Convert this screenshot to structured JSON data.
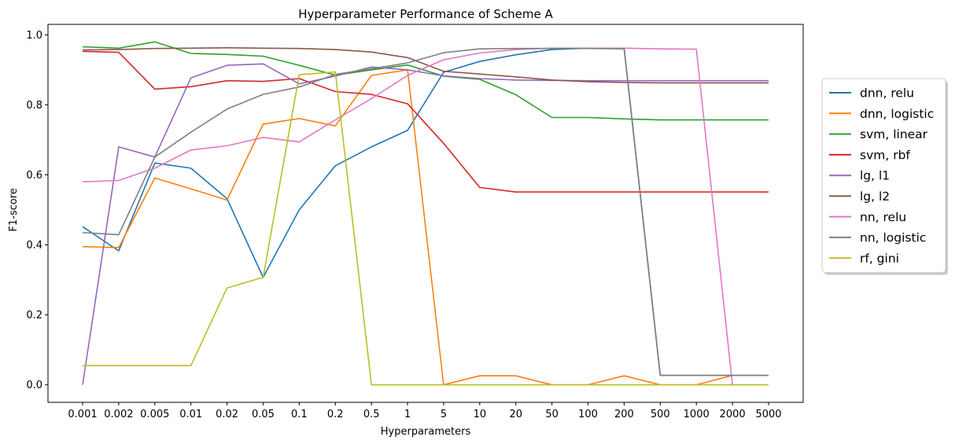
{
  "chart_data": {
    "type": "line",
    "title": "Hyperparameter Performance of Scheme A",
    "xlabel": "Hyperparameters",
    "ylabel": "F1-score",
    "ylim": [
      -0.05,
      1.03
    ],
    "yticks": [
      0.0,
      0.2,
      0.4,
      0.6,
      0.8,
      1.0
    ],
    "ytick_labels": [
      "0.0",
      "0.2",
      "0.4",
      "0.6",
      "0.8",
      "1.0"
    ],
    "categories": [
      "0.001",
      "0.002",
      "0.005",
      "0.01",
      "0.02",
      "0.05",
      "0.1",
      "0.2",
      "0.5",
      "1",
      "5",
      "10",
      "20",
      "50",
      "100",
      "200",
      "500",
      "1000",
      "2000",
      "5000"
    ],
    "grid": false,
    "legend_position": "outside-right",
    "series": [
      {
        "name": "dnn, relu",
        "color": "#1f77b4",
        "values": [
          0.452,
          0.383,
          0.634,
          0.619,
          0.532,
          0.307,
          0.5,
          0.626,
          0.68,
          0.727,
          0.893,
          0.924,
          0.943,
          0.958,
          0.962,
          0.962,
          0.027,
          0.027,
          0.027,
          0.027
        ]
      },
      {
        "name": "dnn, logistic",
        "color": "#ff7f0e",
        "values": [
          0.395,
          0.392,
          0.591,
          0.56,
          0.528,
          0.745,
          0.761,
          0.74,
          0.884,
          0.9,
          0.0,
          0.026,
          0.026,
          0.0,
          0.0,
          0.026,
          0.0,
          0.0,
          0.027,
          0.027
        ]
      },
      {
        "name": "svm, linear",
        "color": "#2ca02c",
        "values": [
          0.966,
          0.962,
          0.98,
          0.947,
          0.944,
          0.939,
          0.913,
          0.885,
          0.9,
          0.914,
          0.882,
          0.873,
          0.829,
          0.764,
          0.764,
          0.76,
          0.757,
          0.757,
          0.757,
          0.757
        ]
      },
      {
        "name": "svm, rbf",
        "color": "#d62728",
        "values": [
          0.953,
          0.95,
          0.845,
          0.852,
          0.869,
          0.867,
          0.875,
          0.838,
          0.83,
          0.803,
          0.69,
          0.564,
          0.551,
          0.551,
          0.551,
          0.551,
          0.551,
          0.551,
          0.551,
          0.551
        ]
      },
      {
        "name": "lg, l1",
        "color": "#9467bd",
        "values": [
          0.0,
          0.68,
          0.651,
          0.877,
          0.913,
          0.917,
          0.86,
          0.882,
          0.908,
          0.9,
          0.883,
          0.875,
          0.871,
          0.87,
          0.869,
          0.869,
          0.869,
          0.869,
          0.869,
          0.869
        ]
      },
      {
        "name": "lg, l2",
        "color": "#8c564b",
        "values": [
          0.957,
          0.958,
          0.961,
          0.962,
          0.963,
          0.962,
          0.961,
          0.958,
          0.951,
          0.935,
          0.896,
          0.888,
          0.88,
          0.871,
          0.866,
          0.864,
          0.863,
          0.863,
          0.863,
          0.863
        ]
      },
      {
        "name": "nn, relu",
        "color": "#e377c2",
        "values": [
          0.58,
          0.584,
          0.619,
          0.671,
          0.683,
          0.707,
          0.694,
          0.757,
          0.818,
          0.884,
          0.929,
          0.948,
          0.958,
          0.962,
          0.962,
          0.962,
          0.96,
          0.959,
          0.0,
          0.0
        ]
      },
      {
        "name": "nn, logistic",
        "color": "#7f7f7f",
        "values": [
          0.435,
          0.429,
          0.651,
          0.722,
          0.788,
          0.83,
          0.851,
          0.887,
          0.903,
          0.92,
          0.949,
          0.96,
          0.961,
          0.961,
          0.961,
          0.96,
          0.027,
          0.027,
          0.027,
          0.027
        ]
      },
      {
        "name": "rf, gini",
        "color": "#bcbd22",
        "values": [
          0.055,
          0.055,
          0.055,
          0.055,
          0.277,
          0.307,
          0.886,
          0.894,
          0.0,
          0.0,
          0.0,
          0.0,
          0.0,
          0.0,
          0.0,
          0.0,
          0.0,
          0.0,
          0.0,
          0.0
        ]
      }
    ]
  }
}
